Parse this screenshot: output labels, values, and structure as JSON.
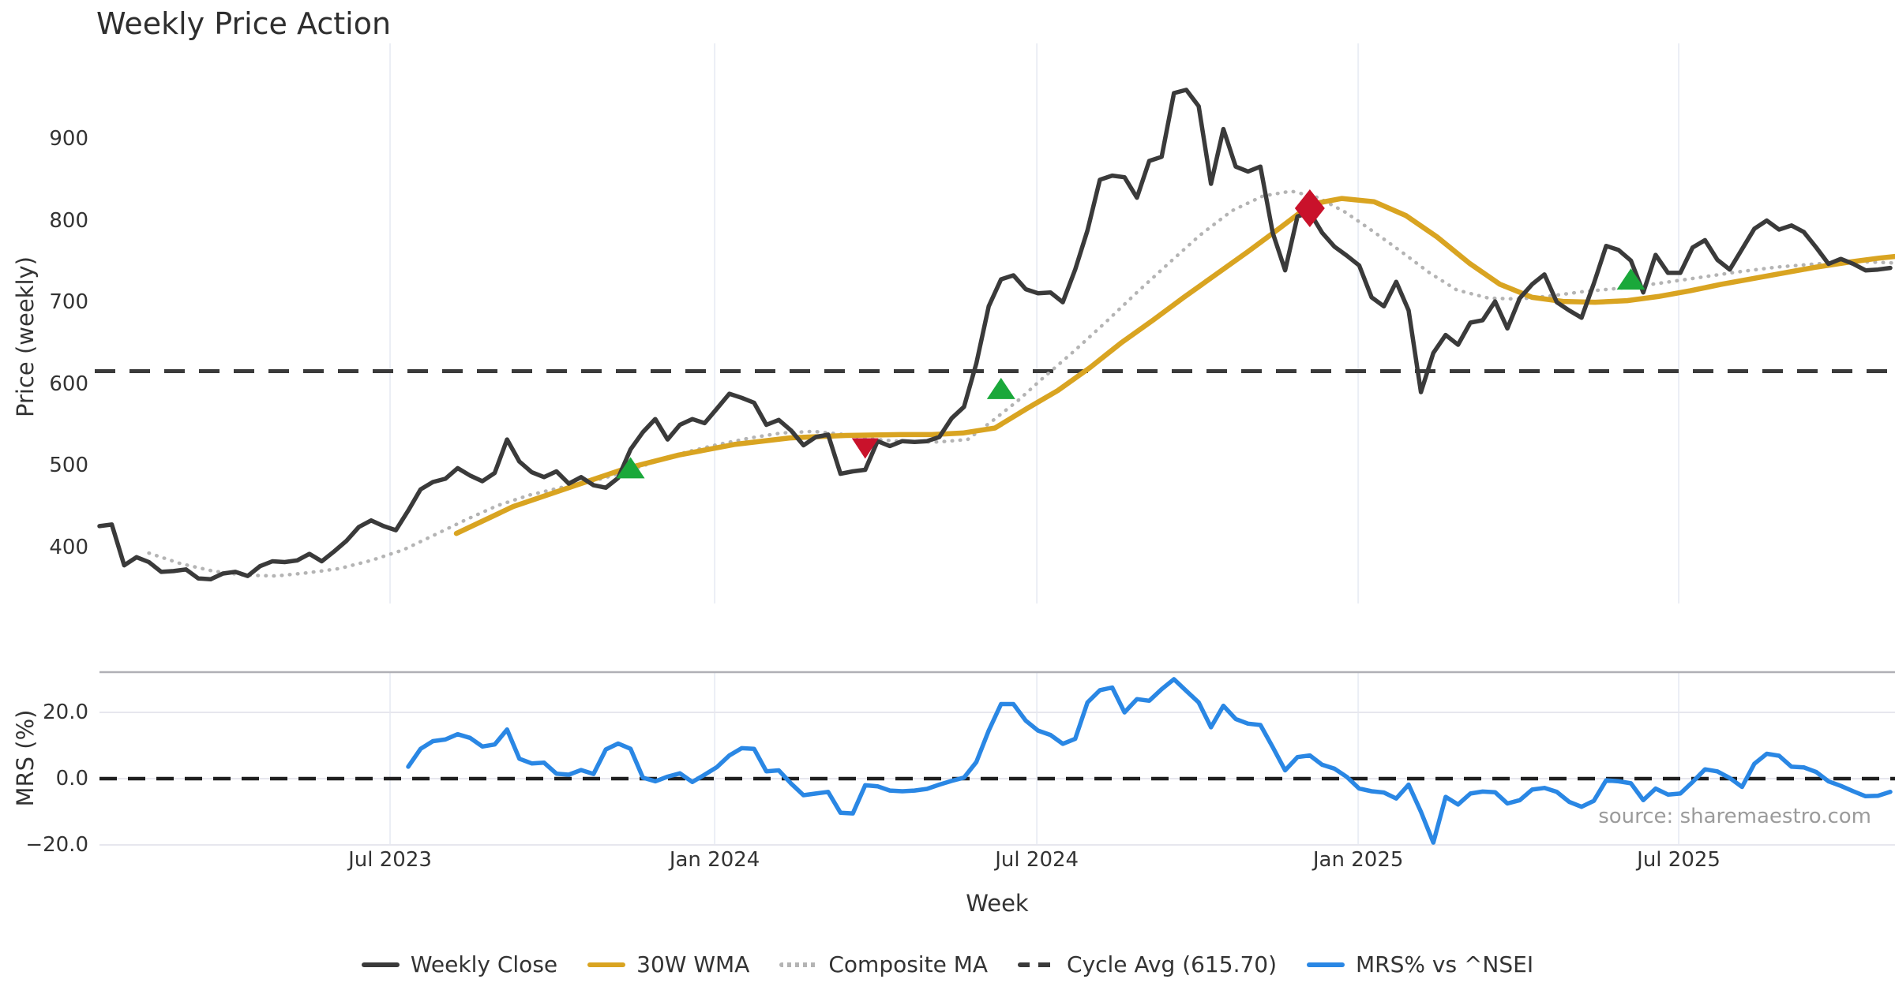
{
  "page": {
    "title": "Weekly Price Action",
    "watermark": "source: sharemaestro.com"
  },
  "colors": {
    "weekly_close": "#3a3a3a",
    "wma_30w": "#d9a421",
    "composite_ma": "#b4b4b4",
    "cycle_avg": "#3a3a3a",
    "mrs_line": "#2a87e4",
    "buy_marker": "#1aa83a",
    "sell_marker": "#c9122b",
    "gridline": "#ebeef5",
    "panel_spine": "#b0b0b6",
    "minor_gridline": "#e7e7ee"
  },
  "chart_data": [
    {
      "type": "line",
      "title": "Weekly Price Action",
      "xlabel": "",
      "ylabel": "Price (weekly)",
      "ylim": [
        340,
        980
      ],
      "yticks": [
        400,
        500,
        600,
        700,
        800,
        900
      ],
      "xticks": [
        {
          "label": "Jul 2023",
          "week": 23.53
        },
        {
          "label": "Jan 2024",
          "week": 49.81
        },
        {
          "label": "Jul 2024",
          "week": 75.9
        },
        {
          "label": "Jan 2025",
          "week": 101.92
        },
        {
          "label": "Jul 2025",
          "week": 127.87
        }
      ],
      "grid": "vertical-only",
      "legend_position": "bottom",
      "series": [
        {
          "name": "Weekly Close",
          "style": "solid",
          "start_week": 0,
          "values": [
            426,
            428,
            378,
            388,
            382,
            370,
            371,
            373,
            362,
            361,
            368,
            370,
            365,
            377,
            383,
            382,
            384,
            392,
            383,
            395,
            408,
            425,
            433,
            426,
            421,
            445,
            471,
            480,
            484,
            497,
            488,
            481,
            491,
            532,
            505,
            492,
            486,
            493,
            478,
            486,
            476,
            473,
            485,
            520,
            541,
            557,
            532,
            550,
            557,
            552,
            570,
            588,
            583,
            577,
            550,
            556,
            543,
            525,
            535,
            538,
            490,
            493,
            495,
            530,
            524,
            530,
            529,
            530,
            535,
            558,
            572,
            625,
            695,
            728,
            733,
            716,
            711,
            712,
            700,
            740,
            788,
            850,
            855,
            853,
            828,
            873,
            878,
            956,
            960,
            940,
            845,
            912,
            866,
            860,
            866,
            785,
            739,
            805,
            810,
            785,
            768,
            757,
            745,
            706,
            695,
            725,
            690,
            590,
            638,
            660,
            648,
            675,
            678,
            701,
            668,
            705,
            722,
            734,
            700,
            690,
            681,
            723,
            769,
            764,
            751,
            712,
            758,
            736,
            736,
            767,
            776,
            752,
            740,
            765,
            790,
            800,
            789,
            794,
            786,
            767,
            747,
            753,
            747,
            739,
            740,
            742
          ]
        },
        {
          "name": "30W WMA",
          "style": "solid",
          "points": [
            [
              28.9,
              417
            ],
            [
              33.5,
              450
            ],
            [
              38,
              473
            ],
            [
              42.5,
              496
            ],
            [
              46.9,
              513
            ],
            [
              51.4,
              526
            ],
            [
              55.9,
              534
            ],
            [
              60.4,
              537
            ],
            [
              64.8,
              538
            ],
            [
              67.4,
              538
            ],
            [
              69.9,
              540
            ],
            [
              72.5,
              546
            ],
            [
              75.1,
              570
            ],
            [
              77.6,
              592
            ],
            [
              80.2,
              620
            ],
            [
              82.7,
              650
            ],
            [
              85.3,
              678
            ],
            [
              87.8,
              706
            ],
            [
              90.4,
              734
            ],
            [
              93,
              762
            ],
            [
              95.5,
              790
            ],
            [
              98.1,
              820
            ],
            [
              100.6,
              827
            ],
            [
              103.2,
              823
            ],
            [
              105.8,
              806
            ],
            [
              108.3,
              780
            ],
            [
              110.9,
              748
            ],
            [
              113.4,
              722
            ],
            [
              116,
              706
            ],
            [
              118.5,
              701
            ],
            [
              121.1,
              700
            ],
            [
              123.7,
              702
            ],
            [
              126.2,
              707
            ],
            [
              128.8,
              714
            ],
            [
              131.3,
              722
            ],
            [
              133.9,
              729
            ],
            [
              136.4,
              736
            ],
            [
              139,
              743
            ],
            [
              141.6,
              749
            ],
            [
              144.1,
              754
            ],
            [
              145.4,
              756
            ]
          ]
        },
        {
          "name": "Composite MA",
          "style": "dotted",
          "points": [
            [
              4,
              393
            ],
            [
              6.6,
              380
            ],
            [
              9.2,
              371
            ],
            [
              11.8,
              366
            ],
            [
              14.3,
              365
            ],
            [
              16.9,
              369
            ],
            [
              19.4,
              374
            ],
            [
              22,
              384
            ],
            [
              24.6,
              397
            ],
            [
              27.1,
              415
            ],
            [
              29.7,
              434
            ],
            [
              32.2,
              451
            ],
            [
              34.8,
              464
            ],
            [
              37.3,
              473
            ],
            [
              39.9,
              481
            ],
            [
              42.5,
              492
            ],
            [
              45,
              505
            ],
            [
              47.6,
              517
            ],
            [
              50.1,
              526
            ],
            [
              52.7,
              534
            ],
            [
              55.2,
              540
            ],
            [
              57.8,
              542
            ],
            [
              60.4,
              538
            ],
            [
              62.9,
              532
            ],
            [
              65.5,
              529
            ],
            [
              68,
              529
            ],
            [
              70.3,
              532
            ],
            [
              72.4,
              556
            ],
            [
              74.4,
              580
            ],
            [
              76.3,
              606
            ],
            [
              78.9,
              640
            ],
            [
              81.5,
              676
            ],
            [
              84,
              712
            ],
            [
              86.6,
              748
            ],
            [
              89.1,
              782
            ],
            [
              91.7,
              812
            ],
            [
              94.2,
              830
            ],
            [
              96.5,
              836
            ],
            [
              98.7,
              828
            ],
            [
              100.9,
              810
            ],
            [
              103.2,
              786
            ],
            [
              105.4,
              762
            ],
            [
              107.7,
              736
            ],
            [
              109.9,
              715
            ],
            [
              112.5,
              705
            ],
            [
              115,
              704
            ],
            [
              117.6,
              708
            ],
            [
              120.1,
              713
            ],
            [
              123,
              717
            ],
            [
              126.2,
              723
            ],
            [
              129.4,
              730
            ],
            [
              132.6,
              737
            ],
            [
              135.8,
              743
            ],
            [
              139,
              747
            ],
            [
              142.2,
              750
            ],
            [
              145.4,
              748
            ]
          ]
        },
        {
          "name": "Cycle Avg (615.70)",
          "style": "dashed",
          "value": 615.7
        }
      ],
      "markers": {
        "buy": {
          "shape": "triangle-up",
          "points": [
            [
              43,
              497
            ],
            [
              73,
              594
            ],
            [
              124,
              728
            ]
          ]
        },
        "sell": {
          "points": [
            [
              62,
              522,
              "triangle-down"
            ],
            [
              98,
              815,
              "diamond"
            ]
          ]
        }
      }
    },
    {
      "type": "line",
      "title": "",
      "xlabel": "Week",
      "ylabel": "MRS (%)",
      "ylim": [
        -25,
        32
      ],
      "yticks": [
        {
          "label": "20.0",
          "v": 20
        },
        {
          "label": "0.0",
          "v": 0
        },
        {
          "label": "−20.0",
          "v": -20
        }
      ],
      "zero_dashed_line": 0,
      "series": [
        {
          "name": "MRS% vs ^NSEI",
          "style": "solid",
          "start_week": 25,
          "values": [
            3.6,
            9.0,
            11.3,
            11.8,
            13.4,
            12.3,
            9.7,
            10.3,
            14.8,
            6.0,
            4.6,
            4.8,
            1.5,
            1.2,
            2.6,
            1.4,
            8.8,
            10.6,
            9.0,
            0.3,
            -0.8,
            0.6,
            1.6,
            -1.0,
            1.2,
            3.5,
            7.0,
            9.2,
            9.0,
            2.2,
            2.5,
            -1.5,
            -5.0,
            -4.5,
            -4.0,
            -10.3,
            -10.5,
            -2.0,
            -2.3,
            -3.6,
            -3.8,
            -3.6,
            -3.1,
            -1.8,
            -0.7,
            0.3,
            5.0,
            14.5,
            22.5,
            22.5,
            17.5,
            14.5,
            13.2,
            10.5,
            12.0,
            23.0,
            26.7,
            27.5,
            20.0,
            24.0,
            23.5,
            27.0,
            30.0,
            26.5,
            23.0,
            15.5,
            22.0,
            18.0,
            16.6,
            16.2,
            9.5,
            2.5,
            6.5,
            7.0,
            4.2,
            3.0,
            0.5,
            -3.0,
            -3.8,
            -4.2,
            -6.0,
            -1.8,
            -10.0,
            -19.3,
            -5.5,
            -7.8,
            -4.5,
            -3.9,
            -4.1,
            -7.5,
            -6.5,
            -3.3,
            -2.8,
            -4.0,
            -7.0,
            -8.5,
            -6.7,
            -0.5,
            -0.8,
            -1.4,
            -6.5,
            -3.0,
            -4.8,
            -4.5,
            -1.0,
            2.8,
            2.2,
            0.2,
            -2.5,
            4.5,
            7.5,
            6.9,
            3.6,
            3.4,
            2.0,
            -0.8,
            -2.2,
            -3.8,
            -5.3,
            -5.2,
            -4.0
          ]
        }
      ]
    }
  ],
  "legend": {
    "items": [
      {
        "label": "Weekly Close",
        "style": "solid",
        "color": "#3a3a3a"
      },
      {
        "label": "30W WMA",
        "style": "solid",
        "color": "#d9a421"
      },
      {
        "label": "Composite MA",
        "style": "dotted",
        "color": "#b4b4b4"
      },
      {
        "label": "Cycle Avg (615.70)",
        "style": "dashed",
        "color": "#3a3a3a"
      },
      {
        "label": "MRS% vs ^NSEI",
        "style": "solid",
        "color": "#2a87e4"
      }
    ]
  }
}
